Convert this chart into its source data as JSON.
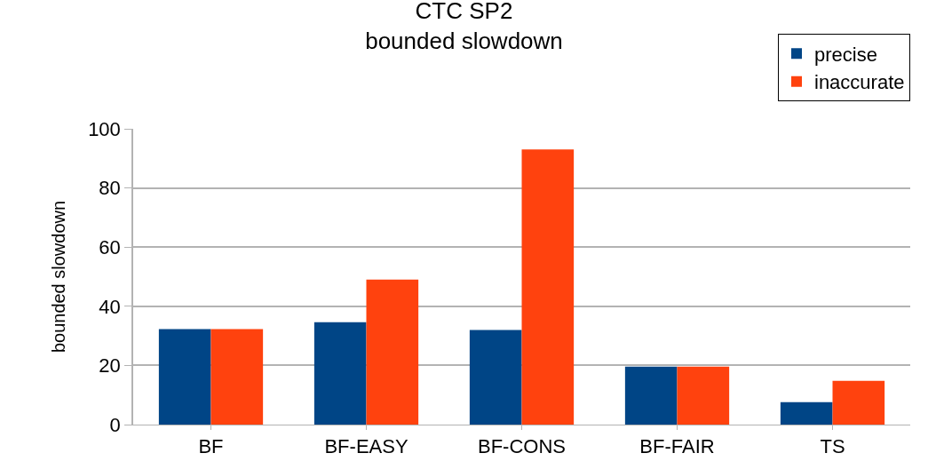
{
  "chart_data": {
    "type": "bar",
    "title": "CTC SP2",
    "subtitle": "bounded slowdown",
    "ylabel": "bounded slowdown",
    "categories": [
      "BF",
      "BF-EASY",
      "BF-CONS",
      "BF-FAIR",
      "TS"
    ],
    "series": [
      {
        "name": "precise",
        "color": "#004586",
        "values": [
          32.3,
          34.6,
          32,
          19.6,
          7.6
        ]
      },
      {
        "name": "inaccurate",
        "color": "#ff420e",
        "values": [
          32.3,
          49,
          93,
          19.6,
          14.8
        ]
      }
    ],
    "ylim": [
      0,
      100
    ],
    "yticks": [
      0,
      20,
      40,
      60,
      80,
      100
    ],
    "grid": "y",
    "legend": "top right"
  }
}
